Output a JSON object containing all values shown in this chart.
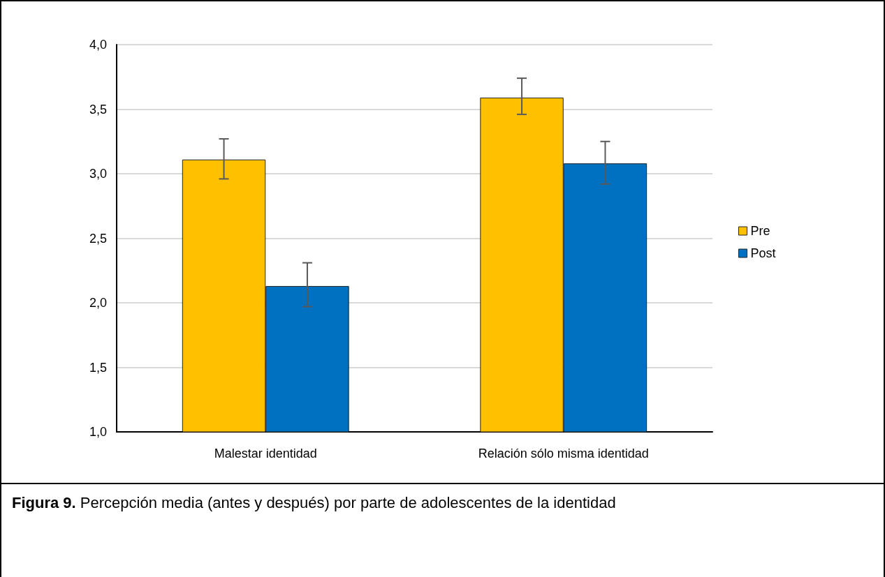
{
  "chart_data": {
    "type": "bar",
    "categories": [
      "Malestar identidad",
      "Relación sólo misma identidad"
    ],
    "series": [
      {
        "name": "Pre",
        "color": "#ffc000",
        "values": [
          3.11,
          3.59
        ],
        "errors": [
          [
            2.96,
            3.27
          ],
          [
            3.46,
            3.74
          ]
        ]
      },
      {
        "name": "Post",
        "color": "#0070c0",
        "values": [
          2.13,
          3.08
        ],
        "errors": [
          [
            1.97,
            2.31
          ],
          [
            2.92,
            3.25
          ]
        ]
      }
    ],
    "ylim": [
      1,
      4
    ],
    "yticks": [
      {
        "value": 1,
        "label": "1,0"
      },
      {
        "value": 1.5,
        "label": "1,5"
      },
      {
        "value": 2,
        "label": "2,0"
      },
      {
        "value": 2.5,
        "label": "2,5"
      },
      {
        "value": 3,
        "label": "3,0"
      },
      {
        "value": 3.5,
        "label": "3,5"
      },
      {
        "value": 4,
        "label": "4,0"
      }
    ],
    "grid": "y",
    "legend": "right",
    "annotations": [
      "Figura 9.",
      "Percepción media (antes y después) por parte de adolescentes de la identidad"
    ]
  }
}
